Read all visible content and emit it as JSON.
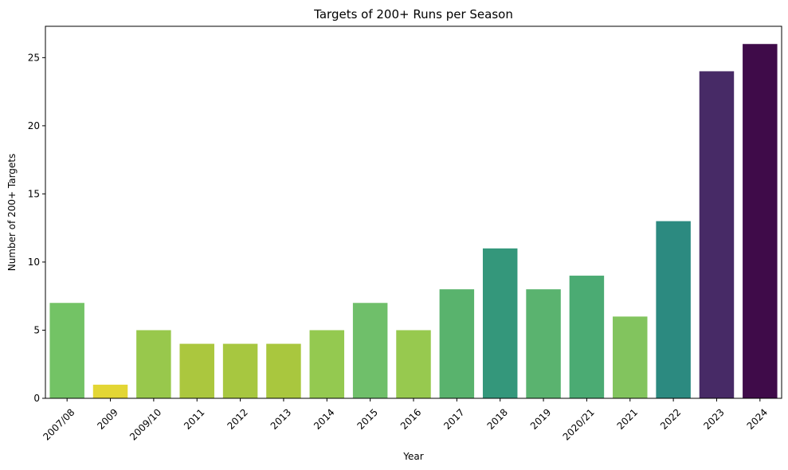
{
  "chart_data": {
    "type": "bar",
    "title": "Targets of 200+ Runs per Season",
    "xlabel": "Year",
    "ylabel": "Number of 200+ Targets",
    "categories": [
      "2007/08",
      "2009",
      "2009/10",
      "2011",
      "2012",
      "2013",
      "2014",
      "2015",
      "2016",
      "2017",
      "2018",
      "2019",
      "2020/21",
      "2021",
      "2022",
      "2023",
      "2024"
    ],
    "values": [
      7,
      1,
      5,
      4,
      4,
      4,
      5,
      7,
      5,
      8,
      11,
      8,
      9,
      6,
      13,
      24,
      26
    ],
    "colors": [
      "#73c365",
      "#e3d634",
      "#98c84c",
      "#abc73e",
      "#a7c740",
      "#a9c73e",
      "#94c950",
      "#6fbf6a",
      "#97c94f",
      "#59b36d",
      "#34977b",
      "#5ab36f",
      "#4bab73",
      "#82c45e",
      "#2c8a80",
      "#472a66",
      "#3f0b49"
    ],
    "yticks": [
      0,
      5,
      10,
      15,
      20,
      25
    ],
    "ylim": [
      0,
      27.3
    ],
    "grid": false,
    "colormap": "viridis"
  }
}
